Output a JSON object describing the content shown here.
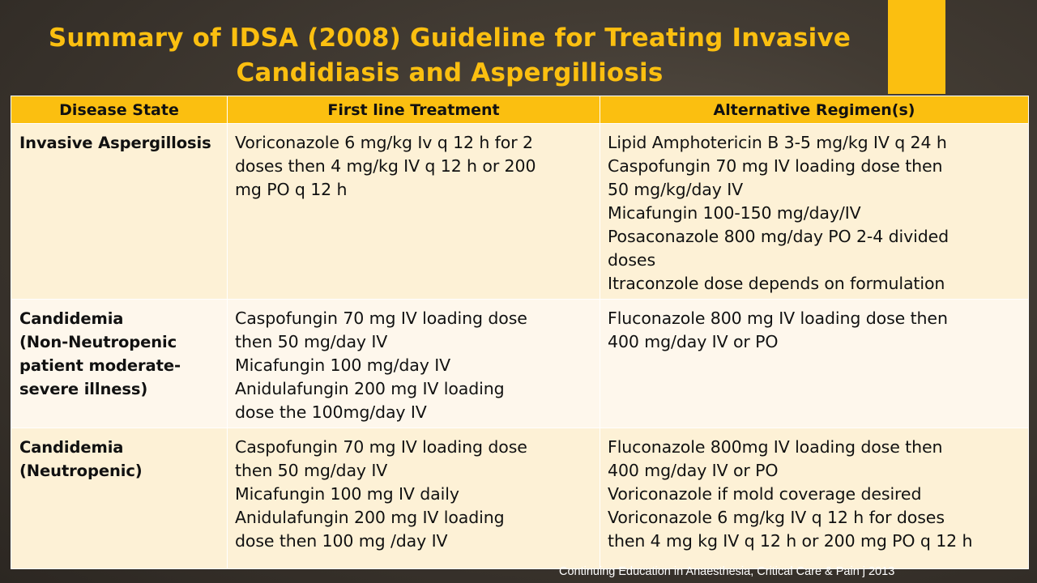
{
  "slide": {
    "title_line1": "Summary of IDSA (2008) Guideline for Treating Invasive",
    "title_line2": "Candidiasis and Aspergilliosis",
    "accent_color": "#fbbf10",
    "citation": "Continuing Education in Anaesthesia, Critical Care & Pain j 2013"
  },
  "table": {
    "headers": [
      "Disease State",
      "First line Treatment",
      "Alternative Regimen(s)"
    ],
    "rows": [
      {
        "disease": [
          "Invasive Aspergillosis"
        ],
        "first_line": [
          "Voriconazole 6 mg/kg Iv q 12 h for 2",
          "doses then 4 mg/kg IV q 12 h or 200",
          "mg PO q 12 h"
        ],
        "alternative": [
          "Lipid Amphotericin B 3-5 mg/kg IV q 24 h",
          "Caspofungin 70 mg IV loading dose then",
          "50 mg/kg/day IV",
          "Micafungin 100-150 mg/day/IV",
          "Posaconazole 800 mg/day PO 2-4 divided",
          "doses",
          "Itraconzole dose depends on formulation"
        ]
      },
      {
        "disease": [
          "Candidemia",
          "(Non-Neutropenic",
          "patient moderate-",
          "severe illness)"
        ],
        "first_line": [
          "Caspofungin 70 mg IV loading dose",
          "then 50 mg/day IV",
          "Micafungin 100 mg/day IV",
          "Anidulafungin 200 mg IV loading",
          "dose the 100mg/day IV"
        ],
        "alternative": [
          "Fluconazole 800 mg IV loading dose then",
          "400 mg/day IV or PO"
        ]
      },
      {
        "disease": [
          "Candidemia",
          "(Neutropenic)"
        ],
        "first_line": [
          "Caspofungin 70 mg IV loading dose",
          "then 50 mg/day IV",
          "Micafungin 100 mg IV daily",
          "Anidulafungin 200 mg IV loading",
          "dose then 100 mg /day IV"
        ],
        "alternative": [
          "Fluconazole 800mg IV loading dose then",
          "400 mg/day IV or PO",
          "Voriconazole if mold coverage desired",
          "Voriconazole 6 mg/kg IV q 12 h for doses",
          "then 4 mg kg IV q 12 h or 200 mg PO q 12 h"
        ]
      }
    ]
  }
}
